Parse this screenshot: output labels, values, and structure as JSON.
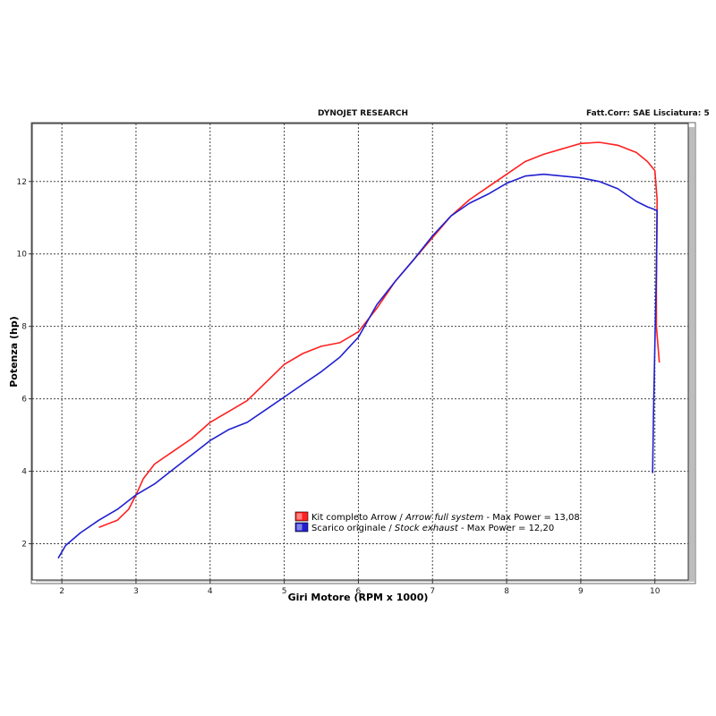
{
  "header": {
    "left": "DYNOJET RESEARCH",
    "right": "Fatt.Corr: SAE  Lisciatura: 5"
  },
  "chart_data": {
    "type": "line",
    "xlabel": "Giri Motore (RPM x 1000)",
    "ylabel": "Potenza (hp)",
    "xlim": [
      1.6,
      10.45
    ],
    "ylim": [
      1.0,
      13.6
    ],
    "xticks": [
      "2",
      "3",
      "4",
      "5",
      "6",
      "7",
      "8",
      "9",
      "10"
    ],
    "yticks": [
      "2",
      "4",
      "6",
      "8",
      "10",
      "12"
    ],
    "grid": true,
    "legend_position": "lower-center",
    "series": [
      {
        "legend_parts": [
          "Kit completo Arrow / ",
          "Arrow full system",
          " - Max Power = 13,08"
        ],
        "color": "#ff2020",
        "points": [
          [
            2.5,
            2.45
          ],
          [
            2.75,
            2.65
          ],
          [
            2.9,
            2.95
          ],
          [
            3.0,
            3.35
          ],
          [
            3.1,
            3.8
          ],
          [
            3.25,
            4.2
          ],
          [
            3.5,
            4.55
          ],
          [
            3.75,
            4.9
          ],
          [
            4.0,
            5.35
          ],
          [
            4.25,
            5.65
          ],
          [
            4.5,
            5.95
          ],
          [
            4.75,
            6.45
          ],
          [
            5.0,
            6.95
          ],
          [
            5.25,
            7.25
          ],
          [
            5.5,
            7.45
          ],
          [
            5.75,
            7.55
          ],
          [
            6.0,
            7.85
          ],
          [
            6.25,
            8.5
          ],
          [
            6.5,
            9.25
          ],
          [
            6.75,
            9.85
          ],
          [
            7.0,
            10.45
          ],
          [
            7.25,
            11.05
          ],
          [
            7.5,
            11.5
          ],
          [
            7.75,
            11.85
          ],
          [
            8.0,
            12.2
          ],
          [
            8.25,
            12.55
          ],
          [
            8.5,
            12.75
          ],
          [
            8.75,
            12.9
          ],
          [
            9.0,
            13.05
          ],
          [
            9.25,
            13.08
          ],
          [
            9.5,
            13.0
          ],
          [
            9.75,
            12.8
          ],
          [
            9.9,
            12.55
          ],
          [
            10.0,
            12.3
          ],
          [
            10.03,
            11.5
          ],
          [
            10.02,
            9.0
          ],
          [
            10.02,
            8.0
          ],
          [
            10.06,
            7.0
          ]
        ]
      },
      {
        "legend_parts": [
          "Scarico originale / ",
          "Stock exhaust",
          " - Max Power = 12,20"
        ],
        "color": "#2020d0",
        "points": [
          [
            1.95,
            1.6
          ],
          [
            2.05,
            1.95
          ],
          [
            2.25,
            2.3
          ],
          [
            2.5,
            2.65
          ],
          [
            2.75,
            2.95
          ],
          [
            3.0,
            3.35
          ],
          [
            3.25,
            3.65
          ],
          [
            3.5,
            4.05
          ],
          [
            3.75,
            4.45
          ],
          [
            4.0,
            4.85
          ],
          [
            4.25,
            5.15
          ],
          [
            4.5,
            5.35
          ],
          [
            4.75,
            5.7
          ],
          [
            5.0,
            6.05
          ],
          [
            5.25,
            6.4
          ],
          [
            5.5,
            6.75
          ],
          [
            5.75,
            7.15
          ],
          [
            6.0,
            7.7
          ],
          [
            6.25,
            8.6
          ],
          [
            6.5,
            9.25
          ],
          [
            6.75,
            9.85
          ],
          [
            7.0,
            10.5
          ],
          [
            7.25,
            11.05
          ],
          [
            7.5,
            11.4
          ],
          [
            7.75,
            11.65
          ],
          [
            8.0,
            11.95
          ],
          [
            8.25,
            12.15
          ],
          [
            8.5,
            12.2
          ],
          [
            8.75,
            12.15
          ],
          [
            9.0,
            12.1
          ],
          [
            9.25,
            12.0
          ],
          [
            9.5,
            11.8
          ],
          [
            9.75,
            11.45
          ],
          [
            9.9,
            11.3
          ],
          [
            10.03,
            11.2
          ],
          [
            10.02,
            9.5
          ],
          [
            10.0,
            7.5
          ],
          [
            9.98,
            5.5
          ],
          [
            9.97,
            3.95
          ]
        ]
      }
    ]
  }
}
